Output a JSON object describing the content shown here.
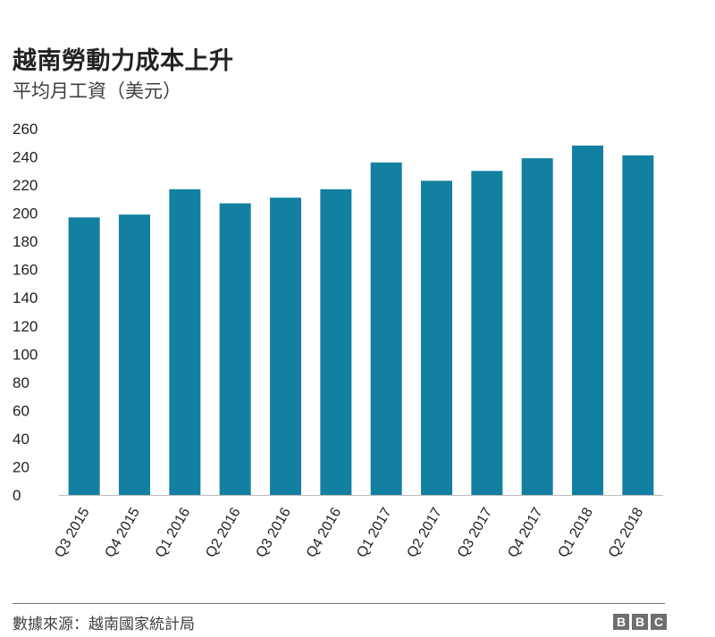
{
  "title": "越南勞動力成本上升",
  "subtitle": "平均月工資（美元）",
  "source": "數據來源：越南國家統計局",
  "logo": [
    "B",
    "B",
    "C"
  ],
  "colors": {
    "bar": "#1380a1",
    "axis": "#bbbbbb",
    "text": "#222222"
  },
  "chart_data": {
    "type": "bar",
    "title": "越南勞動力成本上升",
    "subtitle": "平均月工資（美元）",
    "categories": [
      "Q3 2015",
      "Q4 2015",
      "Q1 2016",
      "Q2 2016",
      "Q3 2016",
      "Q4 2016",
      "Q1 2017",
      "Q2 2017",
      "Q3 2017",
      "Q4 2017",
      "Q1 2018",
      "Q2 2018"
    ],
    "values": [
      197,
      199,
      217,
      207,
      211,
      217,
      236,
      223,
      230,
      239,
      248,
      241
    ],
    "yticks": [
      0,
      20,
      40,
      60,
      80,
      100,
      120,
      140,
      160,
      180,
      200,
      220,
      240,
      260
    ],
    "ylim": [
      0,
      260
    ],
    "xlabel": "",
    "ylabel": "",
    "grid": false,
    "legend": "none"
  }
}
